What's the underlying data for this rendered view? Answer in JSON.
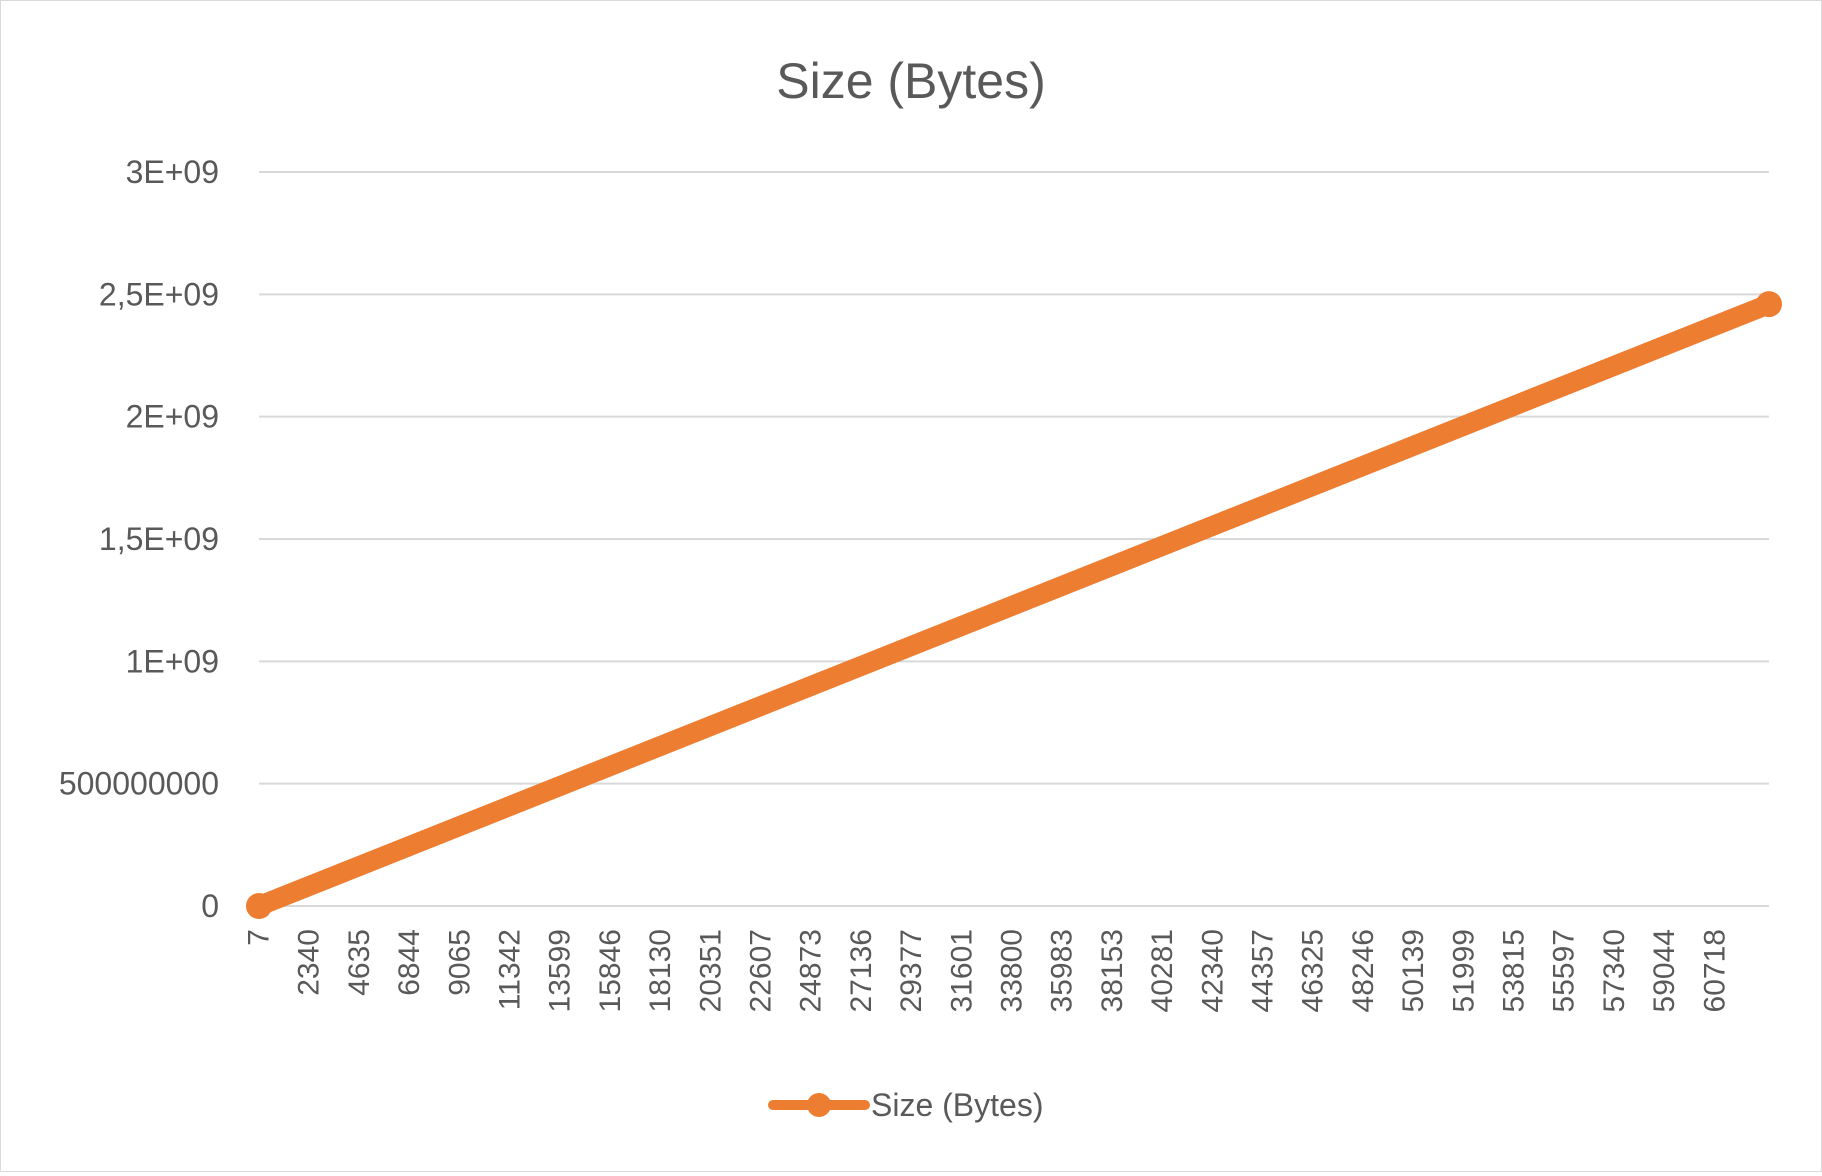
{
  "chart_data": {
    "type": "line",
    "title": "Size (Bytes)",
    "xlabel": "",
    "ylabel": "",
    "grid": true,
    "legend_position": "bottom",
    "categories": [
      "7",
      "2340",
      "4635",
      "6844",
      "9065",
      "11342",
      "13599",
      "15846",
      "18130",
      "20351",
      "22607",
      "24873",
      "27136",
      "29377",
      "31601",
      "33800",
      "35983",
      "38153",
      "40281",
      "42340",
      "44357",
      "46325",
      "48246",
      "50139",
      "51999",
      "53815",
      "55597",
      "57340",
      "59044",
      "60718"
    ],
    "ylim": [
      0,
      3000000000
    ],
    "ytick_labels": [
      "0",
      "500000000",
      "1E+09",
      "1,5E+09",
      "2E+09",
      "2,5E+09",
      "3E+09"
    ],
    "series": [
      {
        "name": "Size (Bytes)",
        "color": "#ed7d31",
        "x": [
          7,
          62000
        ],
        "values": [
          0,
          2460000000
        ]
      }
    ]
  }
}
